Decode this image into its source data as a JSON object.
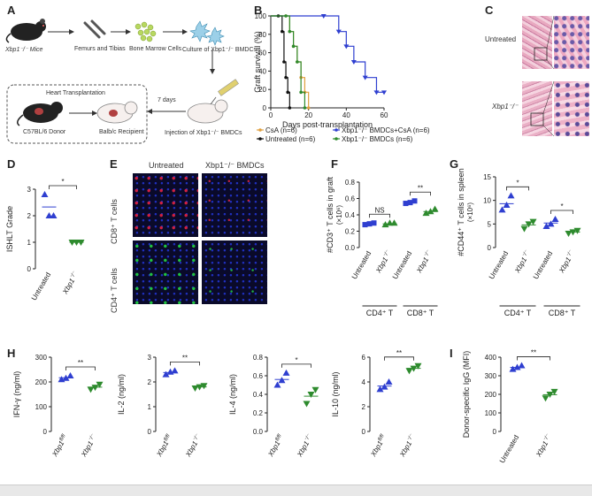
{
  "panels": {
    "A": "A",
    "B": "B",
    "C": "C",
    "D": "D",
    "E": "E",
    "F": "F",
    "G": "G",
    "H": "H",
    "I": "I"
  },
  "schematic": {
    "mice": "Xbp1⁻/⁻ Mice",
    "bones": "Femurs and Tibias",
    "bm_cells": "Bone Marrow Cells",
    "culture": "Culture of Xbp1⁻/⁻ BMDCs",
    "heart_tx": "Heart Transplantation",
    "days": "7 days",
    "donor": "C57BL/6 Donor",
    "recipient": "Balb/c Recipient",
    "injection": "Injection of Xbp1⁻/⁻ BMDCs"
  },
  "histology": {
    "untreated": "Untreated",
    "xbp1": "Xbp1⁻/⁻"
  },
  "immuno": {
    "col1": "Untreated",
    "col2": "Xbp1⁻/⁻ BMDCs",
    "row1": "CD8⁺ T cells",
    "row2": "CD4⁺ T cells"
  },
  "colors": {
    "blue": "#2f3fd0",
    "green": "#2e8b2e",
    "orange": "#e0a040",
    "black": "#111111",
    "pink": "#d9a0b8"
  },
  "chart_data": [
    {
      "panel": "B",
      "type": "line",
      "ylabel": "Graft survival (%)",
      "xlabel": "Days post-transplantation",
      "xlim": [
        0,
        60
      ],
      "ylim": [
        0,
        100
      ],
      "xticks": [
        "0",
        "20",
        "40",
        "60"
      ],
      "yticks": [
        "0",
        "20",
        "40",
        "60",
        "80",
        "100"
      ],
      "series": [
        {
          "name": "CsA (n=6)",
          "color": "orange",
          "x": [
            0,
            8,
            10,
            12,
            14,
            16,
            18,
            20
          ],
          "y": [
            100,
            100,
            83,
            67,
            50,
            33,
            17,
            0
          ]
        },
        {
          "name": "Xbp1⁻/⁻ BMDCs+CsA (n=6)",
          "color": "blue",
          "x": [
            0,
            28,
            36,
            40,
            44,
            50,
            56,
            60
          ],
          "y": [
            100,
            100,
            83,
            67,
            50,
            33,
            17,
            17
          ]
        },
        {
          "name": "Untreated (n=6)",
          "color": "black",
          "x": [
            0,
            4,
            6,
            7,
            8,
            9,
            10
          ],
          "y": [
            100,
            100,
            83,
            50,
            33,
            17,
            0
          ]
        },
        {
          "name": "Xbp1⁻/⁻ BMDCs (n=6)",
          "color": "green",
          "x": [
            0,
            8,
            10,
            12,
            14,
            16,
            18
          ],
          "y": [
            100,
            100,
            83,
            67,
            50,
            17,
            0
          ]
        }
      ]
    },
    {
      "panel": "D",
      "type": "scatter",
      "ylabel": "ISHLT Grade",
      "ylim": [
        0,
        3
      ],
      "yticks": [
        "0",
        "1",
        "2",
        "3"
      ],
      "categories": [
        "Untreated",
        "Xbp1⁻/⁻"
      ],
      "values": [
        [
          2.8,
          2.0,
          2.0
        ],
        [
          1.0,
          1.0,
          1.0
        ]
      ],
      "mean": [
        2.33,
        1.0
      ],
      "sig": "*"
    },
    {
      "panel": "F",
      "type": "scatter",
      "ylabel": "#CD3⁺ T cells in graft",
      "yunit": "(×10⁶)",
      "ylim": [
        0.0,
        0.8
      ],
      "yticks": [
        "0.0",
        "0.2",
        "0.4",
        "0.6",
        "0.8"
      ],
      "categories": [
        "Untreated",
        "Xbp1⁻/⁻",
        "Untreated",
        "Xbp1⁻/⁻"
      ],
      "groups": [
        "CD4⁺ T",
        "CD8⁺ T"
      ],
      "values": [
        [
          0.28,
          0.29,
          0.3
        ],
        [
          0.28,
          0.3,
          0.3
        ],
        [
          0.54,
          0.55,
          0.57
        ],
        [
          0.42,
          0.44,
          0.47
        ]
      ],
      "mean": [
        0.29,
        0.29,
        0.55,
        0.44
      ],
      "sig": [
        "NS",
        "**"
      ]
    },
    {
      "panel": "G",
      "type": "scatter",
      "ylabel": "#CD44⁺ T cells in spleen",
      "yunit": "(×10⁶)",
      "ylim": [
        0,
        15
      ],
      "yticks": [
        "0",
        "5",
        "10",
        "15"
      ],
      "categories": [
        "Untreated",
        "Xbp1⁻/⁻",
        "Untreated",
        "Xbp1⁻/⁻"
      ],
      "groups": [
        "CD4⁺ T",
        "CD8⁺ T"
      ],
      "values": [
        [
          8.0,
          9.0,
          11.0
        ],
        [
          4.0,
          5.0,
          5.5
        ],
        [
          4.5,
          5.0,
          6.0
        ],
        [
          3.0,
          3.3,
          3.6
        ]
      ],
      "mean": [
        9.3,
        4.8,
        5.2,
        3.3
      ],
      "sig": [
        "*",
        "*"
      ]
    },
    {
      "panel": "H1",
      "type": "scatter",
      "ylabel": "IFN-γ (ng/ml)",
      "ylim": [
        0,
        300
      ],
      "yticks": [
        "0",
        "100",
        "200",
        "300"
      ],
      "categories": [
        "Xbp1fl/fl",
        "Xbp1⁻/⁻"
      ],
      "values": [
        [
          210,
          215,
          225
        ],
        [
          170,
          178,
          190
        ]
      ],
      "mean": [
        217,
        179
      ],
      "sig": "**"
    },
    {
      "panel": "H2",
      "type": "scatter",
      "ylabel": "IL-2 (ng/ml)",
      "ylim": [
        0,
        3
      ],
      "yticks": [
        "0",
        "1",
        "2",
        "3"
      ],
      "categories": [
        "Xbp1fl/fl",
        "Xbp1⁻/⁻"
      ],
      "values": [
        [
          2.3,
          2.4,
          2.45
        ],
        [
          1.75,
          1.8,
          1.85
        ]
      ],
      "mean": [
        2.38,
        1.8
      ],
      "sig": "**"
    },
    {
      "panel": "H3",
      "type": "scatter",
      "ylabel": "IL-4 (ng/ml)",
      "ylim": [
        0,
        0.8
      ],
      "yticks": [
        "0.0",
        "0.2",
        "0.4",
        "0.6",
        "0.8"
      ],
      "categories": [
        "Xbp1fl/fl",
        "Xbp1⁻/⁻"
      ],
      "values": [
        [
          0.5,
          0.55,
          0.63
        ],
        [
          0.3,
          0.4,
          0.45
        ]
      ],
      "mean": [
        0.56,
        0.38
      ],
      "sig": "*"
    },
    {
      "panel": "H4",
      "type": "scatter",
      "ylabel": "IL-10 (ng/ml)",
      "ylim": [
        0,
        6
      ],
      "yticks": [
        "0",
        "2",
        "4",
        "6"
      ],
      "categories": [
        "Xbp1fl/fl",
        "Xbp1⁻/⁻"
      ],
      "values": [
        [
          3.4,
          3.6,
          4.0
        ],
        [
          4.9,
          5.1,
          5.3
        ]
      ],
      "mean": [
        3.67,
        5.1
      ],
      "sig": "**"
    },
    {
      "panel": "I",
      "type": "scatter",
      "ylabel": "Donor-specific IgG (MFI)",
      "ylim": [
        0,
        400
      ],
      "yticks": [
        "0",
        "100",
        "200",
        "300",
        "400"
      ],
      "categories": [
        "Untreated",
        "Xbp1⁻/⁻"
      ],
      "values": [
        [
          335,
          345,
          355
        ],
        [
          180,
          200,
          215
        ]
      ],
      "mean": [
        345,
        198
      ],
      "sig": "**"
    }
  ]
}
